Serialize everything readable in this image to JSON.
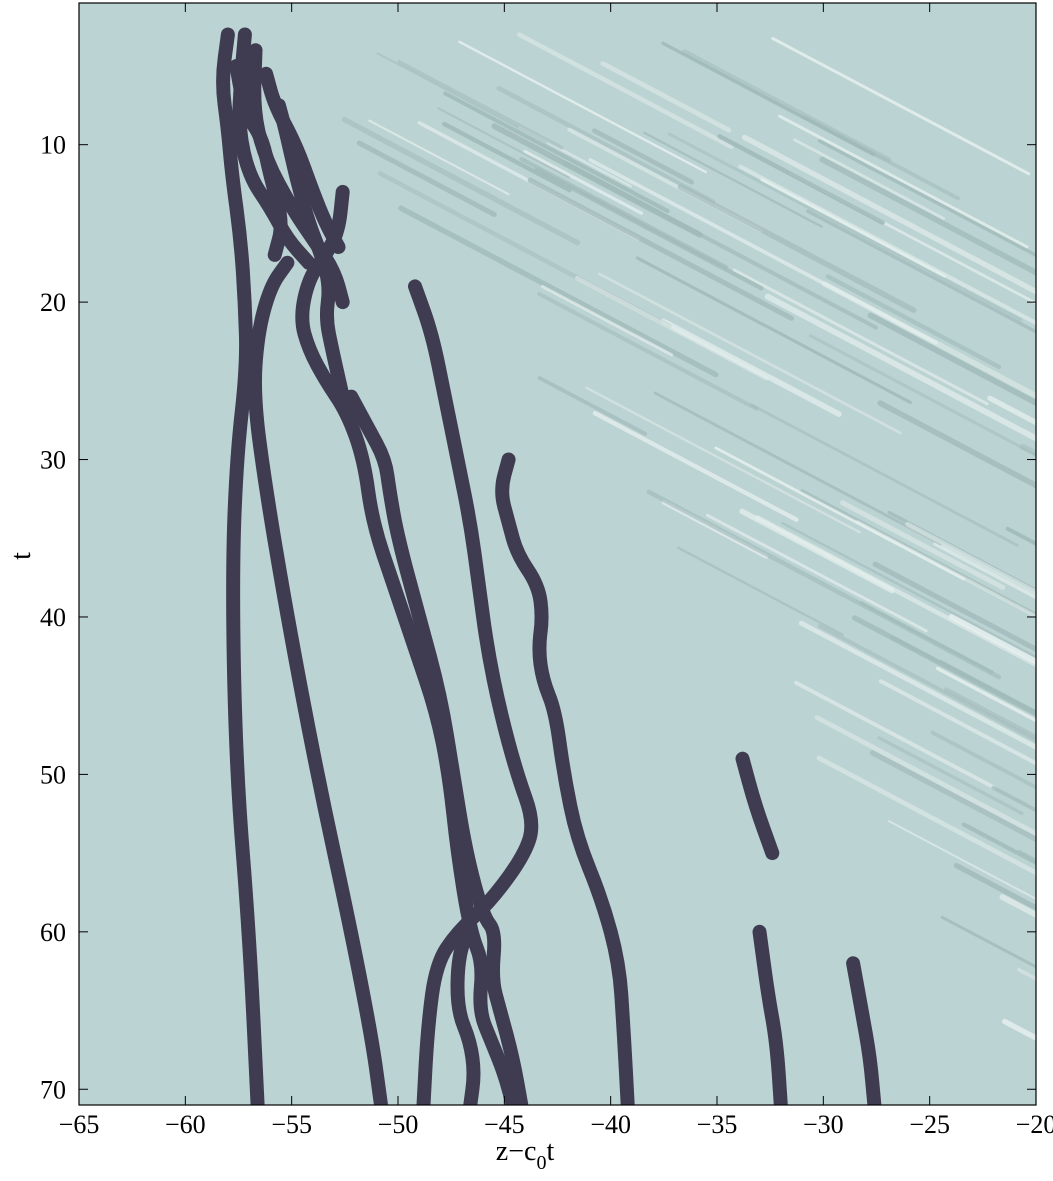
{
  "chart_data": {
    "type": "heatmap",
    "title": "",
    "xlabel": "z−c",
    "xlabel_subscript": "0",
    "xlabel_suffix": "t",
    "ylabel": "t",
    "xlim": [
      -65,
      -20
    ],
    "ylim": [
      1,
      71
    ],
    "y_reversed": true,
    "grid": false,
    "xticks": [
      -65,
      -60,
      -55,
      -50,
      -45,
      -40,
      -35,
      -30,
      -25,
      -20
    ],
    "xtick_labels": [
      "−65",
      "−60",
      "−55",
      "−50",
      "−45",
      "−40",
      "−35",
      "−30",
      "−25",
      "−20"
    ],
    "yticks": [
      10,
      20,
      30,
      40,
      50,
      60,
      70
    ],
    "ytick_labels": [
      "10",
      "20",
      "30",
      "40",
      "50",
      "60",
      "70"
    ],
    "colors": {
      "background": "#bcd3d3",
      "trace": "#3f3c52",
      "ripple_dark": "#9fb8b8",
      "ripple_light": "#e6f0ee"
    },
    "traces": [
      {
        "points": [
          [
            -58.0,
            3
          ],
          [
            -58.3,
            6
          ],
          [
            -58.0,
            9
          ],
          [
            -57.8,
            12
          ],
          [
            -57.4,
            16
          ],
          [
            -57.2,
            20
          ],
          [
            -57.1,
            24
          ],
          [
            -57.6,
            30
          ],
          [
            -57.8,
            38
          ],
          [
            -57.6,
            50
          ],
          [
            -57.0,
            60
          ],
          [
            -56.6,
            71
          ]
        ]
      },
      {
        "points": [
          [
            -57.2,
            3
          ],
          [
            -57.4,
            6
          ],
          [
            -57.5,
            9
          ],
          [
            -57.0,
            12
          ],
          [
            -56.0,
            14
          ],
          [
            -55.2,
            16
          ],
          [
            -54.2,
            17.5
          ]
        ]
      },
      {
        "points": [
          [
            -56.7,
            4
          ],
          [
            -56.8,
            8
          ],
          [
            -56.2,
            11
          ],
          [
            -55.0,
            14
          ],
          [
            -54.0,
            16
          ],
          [
            -53.0,
            18
          ],
          [
            -52.6,
            20
          ]
        ]
      },
      {
        "points": [
          [
            -57.6,
            5
          ],
          [
            -57.2,
            8
          ],
          [
            -56.4,
            9.5
          ],
          [
            -56.0,
            12
          ],
          [
            -55.4,
            15
          ],
          [
            -55.8,
            17
          ]
        ]
      },
      {
        "points": [
          [
            -56.2,
            5.5
          ],
          [
            -55.8,
            7.5
          ],
          [
            -54.8,
            10
          ],
          [
            -54.0,
            13
          ],
          [
            -53.4,
            15
          ],
          [
            -52.8,
            16.5
          ]
        ]
      },
      {
        "points": [
          [
            -55.6,
            7.5
          ],
          [
            -55.3,
            9
          ],
          [
            -54.8,
            12
          ],
          [
            -54.2,
            15
          ],
          [
            -53.6,
            17
          ],
          [
            -53.2,
            19
          ],
          [
            -53.4,
            21
          ],
          [
            -53.1,
            23
          ],
          [
            -52.6,
            26
          ]
        ]
      },
      {
        "points": [
          [
            -52.6,
            13
          ],
          [
            -52.8,
            15.5
          ],
          [
            -53.4,
            17
          ],
          [
            -54.2,
            18.5
          ],
          [
            -54.6,
            21
          ],
          [
            -54.2,
            23
          ],
          [
            -53.4,
            25
          ],
          [
            -52.4,
            27
          ],
          [
            -51.6,
            30
          ],
          [
            -51.2,
            34
          ],
          [
            -50.2,
            38
          ],
          [
            -49.2,
            42
          ],
          [
            -48.2,
            46
          ],
          [
            -47.6,
            50
          ],
          [
            -47.2,
            55
          ],
          [
            -46.6,
            60
          ],
          [
            -46.0,
            62
          ],
          [
            -46.2,
            65
          ],
          [
            -45.6,
            67
          ],
          [
            -45.0,
            69
          ],
          [
            -44.6,
            71
          ]
        ]
      },
      {
        "points": [
          [
            -55.2,
            17.5
          ],
          [
            -56.0,
            19
          ],
          [
            -56.6,
            22
          ],
          [
            -56.8,
            26
          ],
          [
            -56.2,
            32
          ],
          [
            -55.2,
            40
          ],
          [
            -53.8,
            50
          ],
          [
            -52.2,
            60
          ],
          [
            -51.2,
            67
          ],
          [
            -50.8,
            71
          ]
        ]
      },
      {
        "points": [
          [
            -52.2,
            26
          ],
          [
            -51.4,
            28
          ],
          [
            -50.6,
            30
          ],
          [
            -50.4,
            32
          ],
          [
            -50.0,
            35
          ],
          [
            -49.0,
            40
          ],
          [
            -48.0,
            45
          ],
          [
            -47.4,
            50
          ],
          [
            -46.8,
            55
          ],
          [
            -46.0,
            59
          ],
          [
            -45.4,
            60
          ],
          [
            -45.6,
            63
          ],
          [
            -45.2,
            65
          ],
          [
            -44.6,
            68
          ],
          [
            -44.2,
            71
          ]
        ]
      },
      {
        "points": [
          [
            -49.2,
            19
          ],
          [
            -48.4,
            22
          ],
          [
            -47.8,
            26
          ],
          [
            -47.2,
            30
          ],
          [
            -46.6,
            34
          ],
          [
            -46.2,
            38
          ],
          [
            -45.8,
            42
          ],
          [
            -45.2,
            46
          ],
          [
            -44.4,
            50
          ],
          [
            -43.6,
            53
          ],
          [
            -44.0,
            55
          ],
          [
            -45.6,
            58
          ],
          [
            -47.2,
            60
          ],
          [
            -48.2,
            62
          ],
          [
            -48.6,
            66
          ],
          [
            -48.8,
            71
          ]
        ]
      },
      {
        "points": [
          [
            -44.8,
            30
          ],
          [
            -45.2,
            32
          ],
          [
            -44.8,
            34
          ],
          [
            -44.4,
            36
          ],
          [
            -43.4,
            38
          ],
          [
            -43.2,
            40
          ],
          [
            -43.4,
            42
          ],
          [
            -43.2,
            44
          ],
          [
            -42.6,
            46
          ],
          [
            -42.2,
            50
          ],
          [
            -41.6,
            54
          ],
          [
            -40.4,
            58
          ],
          [
            -39.6,
            62
          ],
          [
            -39.4,
            66
          ],
          [
            -39.2,
            71
          ]
        ]
      },
      {
        "points": [
          [
            -46.8,
            60
          ],
          [
            -47.2,
            62
          ],
          [
            -47.2,
            65
          ],
          [
            -46.6,
            67
          ],
          [
            -46.4,
            69
          ],
          [
            -46.6,
            71
          ]
        ]
      },
      {
        "points": [
          [
            -33.0,
            60
          ],
          [
            -32.6,
            64
          ],
          [
            -32.2,
            67
          ],
          [
            -32.0,
            71
          ]
        ]
      },
      {
        "points": [
          [
            -28.6,
            62
          ],
          [
            -28.2,
            65
          ],
          [
            -27.8,
            68
          ],
          [
            -27.6,
            71
          ]
        ]
      },
      {
        "points": [
          [
            -33.8,
            49
          ],
          [
            -33.2,
            52
          ],
          [
            -32.4,
            55
          ]
        ]
      }
    ]
  }
}
